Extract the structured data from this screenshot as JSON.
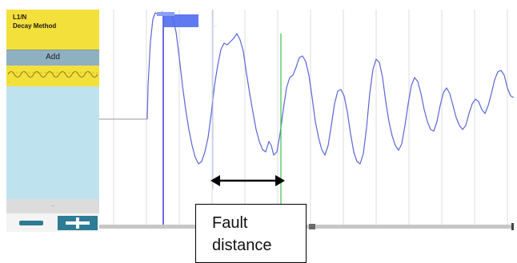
{
  "sidebar": {
    "title_lines": [
      "L1/N",
      "Decay Method"
    ],
    "add_label": "Add",
    "thumb_caption": "...",
    "length_label": "...",
    "zoom_out_label": "zoom out",
    "zoom_in_label": "zoom in"
  },
  "plot": {
    "cursor_a_label": "...",
    "cursor_b_label": "...",
    "colors": {
      "trace": "#5b67d6",
      "cursor_a": "#4a4ad4",
      "cursor_b": "#3ec24b",
      "grid": "#dcdcdc",
      "flat_line": "#9a9a9a",
      "marker": "#4f6cf0"
    }
  },
  "annotation": {
    "text_lines": [
      "Fault",
      "distance"
    ],
    "arrow": "double-headed"
  }
}
